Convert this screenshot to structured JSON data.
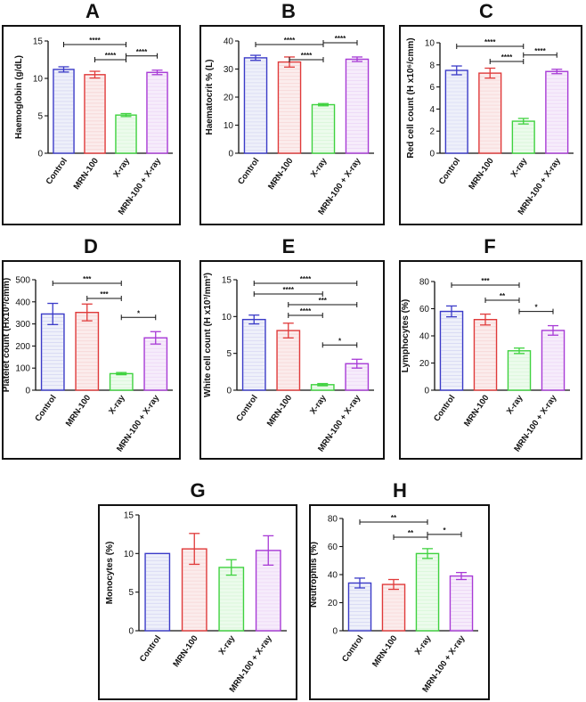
{
  "colors": {
    "control": "#3b3bc8",
    "mrn": "#e03a3a",
    "xray": "#3fd23f",
    "combo": "#a83ad6",
    "control_fill": "#eef0fa",
    "mrn_fill": "#fbecec",
    "xray_fill": "#ecfbec",
    "combo_fill": "#f6ecfb",
    "axis": "#111111"
  },
  "chart_data": [
    {
      "letter": "A",
      "type": "bar",
      "categories": [
        "Control",
        "MRN-100",
        "X-ray",
        "MRN-100 + X-ray"
      ],
      "values": [
        11.2,
        10.5,
        5.1,
        10.8
      ],
      "errors": [
        0.35,
        0.45,
        0.2,
        0.3
      ],
      "ylabel": "Haemoglobin (g/dL)",
      "ylim": [
        0,
        15
      ],
      "yticks": [
        "0",
        "5",
        "10",
        "15"
      ],
      "ytick_values": [
        0,
        5,
        10,
        15
      ],
      "significance": [
        {
          "from": 0,
          "to": 2,
          "label": "****"
        },
        {
          "from": 1,
          "to": 2,
          "label": "****"
        },
        {
          "from": 2,
          "to": 3,
          "label": "****"
        }
      ]
    },
    {
      "letter": "B",
      "type": "bar",
      "categories": [
        "Control",
        "MRN-100",
        "X-ray",
        "MRN-100 + X-ray"
      ],
      "values": [
        34,
        32.5,
        17.3,
        33.5
      ],
      "errors": [
        0.9,
        1.8,
        0.4,
        0.8
      ],
      "ylabel": "Haematocrit % (L)",
      "ylim": [
        0,
        40
      ],
      "yticks": [
        "0",
        "10",
        "20",
        "30",
        "40"
      ],
      "ytick_values": [
        0,
        10,
        20,
        30,
        40
      ],
      "significance": [
        {
          "from": 0,
          "to": 2,
          "label": "****"
        },
        {
          "from": 1,
          "to": 2,
          "label": "****"
        },
        {
          "from": 2,
          "to": 3,
          "label": "****"
        }
      ]
    },
    {
      "letter": "C",
      "type": "bar",
      "categories": [
        "Control",
        "MRN-100",
        "X-ray",
        "MRN-100 + X-ray"
      ],
      "values": [
        7.5,
        7.25,
        2.9,
        7.4
      ],
      "errors": [
        0.4,
        0.45,
        0.25,
        0.2
      ],
      "ylabel": "Red cell count (H x10⁶/cmm)",
      "ylim": [
        0,
        10
      ],
      "yticks": [
        "0",
        "2",
        "4",
        "6",
        "8",
        "10"
      ],
      "ytick_values": [
        0,
        2,
        4,
        6,
        8,
        10
      ],
      "significance": [
        {
          "from": 0,
          "to": 2,
          "label": "****"
        },
        {
          "from": 1,
          "to": 2,
          "label": "****"
        },
        {
          "from": 2,
          "to": 3,
          "label": "****"
        }
      ]
    },
    {
      "letter": "D",
      "type": "bar",
      "categories": [
        "Control",
        "MRN-100",
        "X-ray",
        "MRN-100 + X-ray"
      ],
      "values": [
        345,
        352,
        75,
        237
      ],
      "errors": [
        48,
        38,
        5,
        28
      ],
      "ylabel": "Platelet count (Hx10³/cmm)",
      "ylim": [
        0,
        500
      ],
      "yticks": [
        "0",
        "100",
        "200",
        "300",
        "400",
        "500"
      ],
      "ytick_values": [
        0,
        100,
        200,
        300,
        400,
        500
      ],
      "significance": [
        {
          "from": 0,
          "to": 2,
          "label": "***"
        },
        {
          "from": 1,
          "to": 2,
          "label": "***"
        },
        {
          "from": 2,
          "to": 3,
          "label": "*"
        }
      ]
    },
    {
      "letter": "E",
      "type": "bar",
      "categories": [
        "Control",
        "MRN-100",
        "X-ray",
        "MRN-100 + X-ray"
      ],
      "values": [
        9.6,
        8.1,
        0.75,
        3.6
      ],
      "errors": [
        0.6,
        1.0,
        0.15,
        0.6
      ],
      "ylabel": "White cell count (H x10³/mm³)",
      "ylim": [
        0,
        15
      ],
      "yticks": [
        "0",
        "5",
        "10",
        "15"
      ],
      "ytick_values": [
        0,
        5,
        10,
        15
      ],
      "significance": [
        {
          "from": 0,
          "to": 3,
          "label": "****"
        },
        {
          "from": 0,
          "to": 2,
          "label": "****"
        },
        {
          "from": 1,
          "to": 3,
          "label": "***"
        },
        {
          "from": 1,
          "to": 2,
          "label": "****"
        },
        {
          "from": 2,
          "to": 3,
          "label": "*"
        }
      ]
    },
    {
      "letter": "F",
      "type": "bar",
      "categories": [
        "Control",
        "MRN-100",
        "X-ray",
        "MRN-100 + X-ray"
      ],
      "values": [
        58,
        52,
        29,
        44
      ],
      "errors": [
        4,
        4,
        2,
        3.5
      ],
      "ylabel": "Lymphocytes (%)",
      "ylim": [
        0,
        80
      ],
      "yticks": [
        "0",
        "20",
        "40",
        "60",
        "80"
      ],
      "ytick_values": [
        0,
        20,
        40,
        60,
        80
      ],
      "significance": [
        {
          "from": 0,
          "to": 2,
          "label": "***"
        },
        {
          "from": 1,
          "to": 2,
          "label": "**"
        },
        {
          "from": 2,
          "to": 3,
          "label": "*"
        }
      ]
    },
    {
      "letter": "G",
      "type": "bar",
      "categories": [
        "Control",
        "MRN-100",
        "X-ray",
        "MRN-100 + X-ray"
      ],
      "values": [
        10,
        10.6,
        8.2,
        10.4
      ],
      "errors": [
        0,
        2.0,
        1.0,
        1.9
      ],
      "ylabel": "Monocytes (%)",
      "ylim": [
        0,
        15
      ],
      "yticks": [
        "0",
        "5",
        "10",
        "15"
      ],
      "ytick_values": [
        0,
        5,
        10,
        15
      ],
      "significance": []
    },
    {
      "letter": "H",
      "type": "bar",
      "categories": [
        "Control",
        "MRN-100",
        "X-ray",
        "MRN-100 + X-ray"
      ],
      "values": [
        34,
        33,
        55,
        39
      ],
      "errors": [
        3.5,
        3.5,
        3.5,
        2.5
      ],
      "ylabel": "Neutrophils (%)",
      "ylim": [
        0,
        80
      ],
      "yticks": [
        "0",
        "20",
        "40",
        "60",
        "80"
      ],
      "ytick_values": [
        0,
        20,
        40,
        60,
        80
      ],
      "significance": [
        {
          "from": 0,
          "to": 2,
          "label": "**"
        },
        {
          "from": 1,
          "to": 2,
          "label": "**"
        },
        {
          "from": 2,
          "to": 3,
          "label": "*"
        }
      ]
    }
  ]
}
